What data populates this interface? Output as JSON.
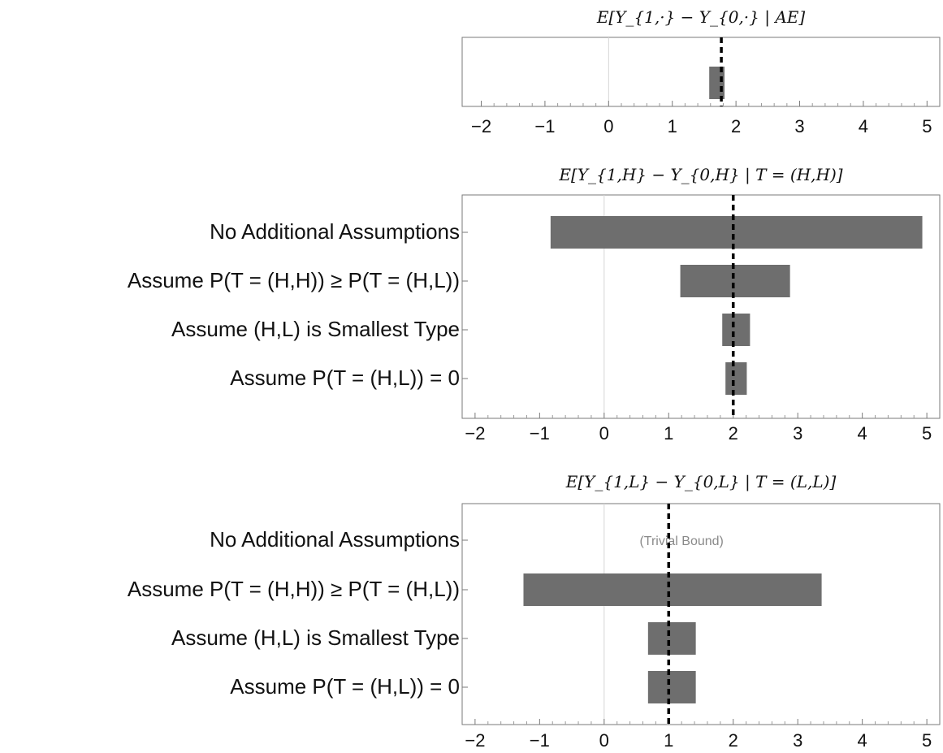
{
  "chart_data": [
    {
      "type": "bar",
      "orientation": "horizontal-interval",
      "title": "E[Y_{1,·} − Y_{0,·} | AE]",
      "categories": [
        ""
      ],
      "intervals": [
        [
          1.58,
          1.82
        ]
      ],
      "reference_value": 1.77,
      "zero_line": 0,
      "xlim": [
        -2.3,
        5.2
      ],
      "xticks": [
        "-2",
        "-1",
        "0",
        "1",
        "2",
        "3",
        "4",
        "5"
      ],
      "annotation": "",
      "grid": false
    },
    {
      "type": "bar",
      "orientation": "horizontal-interval",
      "title": "E[Y_{1,H} − Y_{0,H} | T = (H,H)]",
      "categories": [
        "No Additional Assumptions",
        "Assume P(T = (H,H)) ≥ P(T = (H,L))",
        "Assume (H,L) is Smallest Type",
        "Assume P(T = (H,L)) = 0"
      ],
      "intervals": [
        [
          -0.83,
          4.93
        ],
        [
          1.18,
          2.88
        ],
        [
          1.83,
          2.26
        ],
        [
          1.88,
          2.21
        ]
      ],
      "reference_value": 2.0,
      "zero_line": 0,
      "xlim": [
        -2.2,
        5.2
      ],
      "xticks": [
        "-2",
        "-1",
        "0",
        "1",
        "2",
        "3",
        "4",
        "5"
      ],
      "annotation": "",
      "grid": false
    },
    {
      "type": "bar",
      "orientation": "horizontal-interval",
      "title": "E[Y_{1,L} − Y_{0,L} | T = (L,L)]",
      "categories": [
        "No Additional Assumptions",
        "Assume P(T = (H,H)) ≥ P(T = (H,L))",
        "Assume (H,L) is Smallest Type",
        "Assume P(T = (H,L)) = 0"
      ],
      "intervals": [
        null,
        [
          -1.25,
          3.37
        ],
        [
          0.68,
          1.42
        ],
        [
          0.68,
          1.42
        ]
      ],
      "reference_value": 1.0,
      "zero_line": 0,
      "xlim": [
        -2.2,
        5.2
      ],
      "xticks": [
        "-2",
        "-1",
        "0",
        "1",
        "2",
        "3",
        "4",
        "5"
      ],
      "annotation": "(Trivial Bound)",
      "grid": false
    }
  ]
}
